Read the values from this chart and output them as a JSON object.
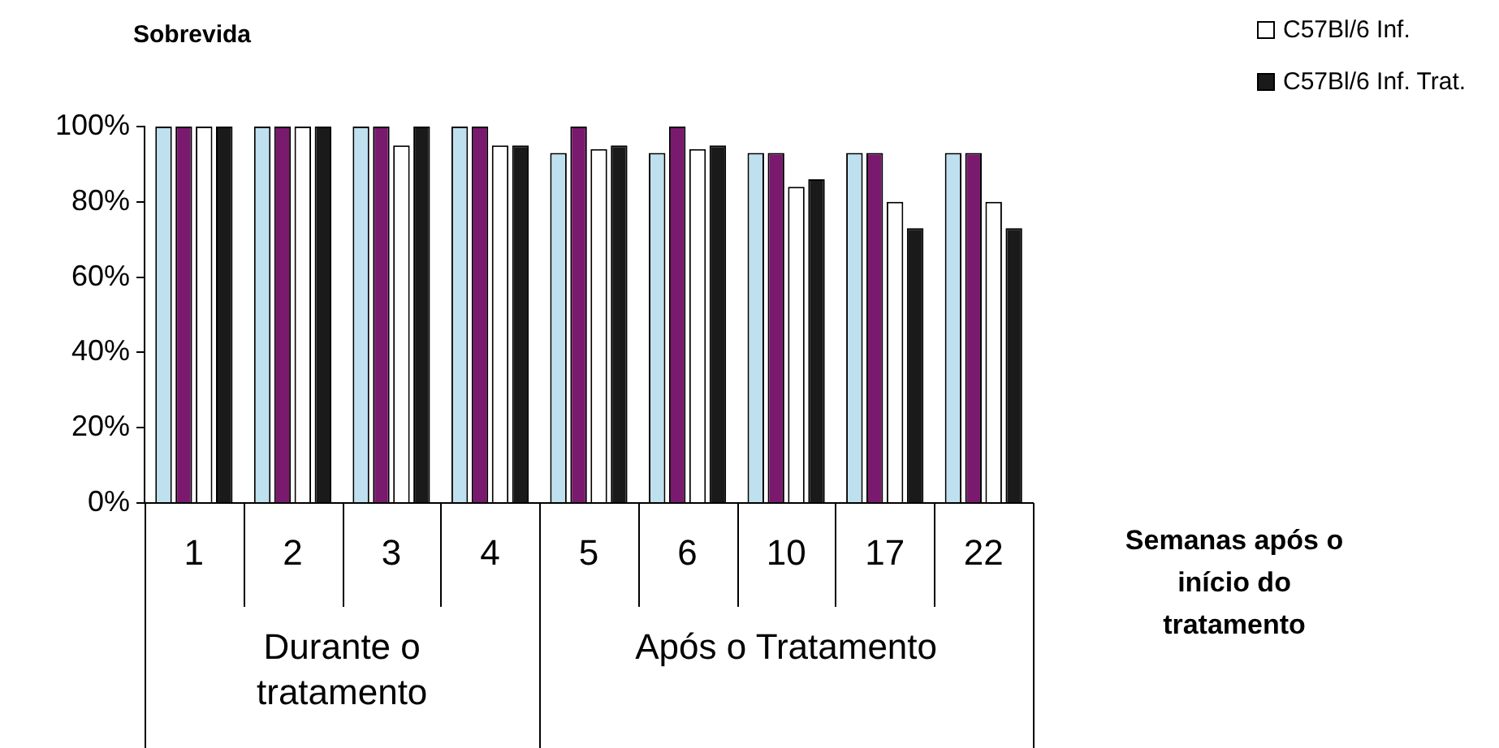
{
  "chart_data": {
    "type": "bar",
    "title": "Sobrevida",
    "xlabel": "Semanas após o início do tratamento",
    "categories": [
      "1",
      "2",
      "3",
      "4",
      "5",
      "6",
      "10",
      "17",
      "22"
    ],
    "series": [
      {
        "color": "#bfe0ee",
        "values": [
          100,
          100,
          100,
          100,
          93,
          93,
          93,
          93,
          93
        ]
      },
      {
        "color": "#7a1a6e",
        "values": [
          100,
          100,
          100,
          100,
          100,
          100,
          93,
          93,
          93
        ]
      },
      {
        "name": "C57Bl/6 Inf.",
        "color": "#ffffff",
        "values": [
          100,
          100,
          95,
          95,
          94,
          94,
          84,
          80,
          80
        ]
      },
      {
        "name": "C57Bl/6 Inf. Trat.",
        "color": "#1a1a1a",
        "values": [
          100,
          100,
          100,
          95,
          95,
          95,
          86,
          73,
          73
        ]
      }
    ],
    "annotations": [
      "Durante o tratamento",
      "Após o Tratamento"
    ],
    "ylim": [
      0,
      100
    ],
    "yticks": [
      {
        "value": 0,
        "label": "0%"
      },
      {
        "value": 20,
        "label": "20%"
      },
      {
        "value": 40,
        "label": "40%"
      },
      {
        "value": 60,
        "label": "60%"
      },
      {
        "value": 80,
        "label": "80%"
      },
      {
        "value": 100,
        "label": "100%"
      }
    ],
    "grid": false,
    "legend": "top right"
  }
}
